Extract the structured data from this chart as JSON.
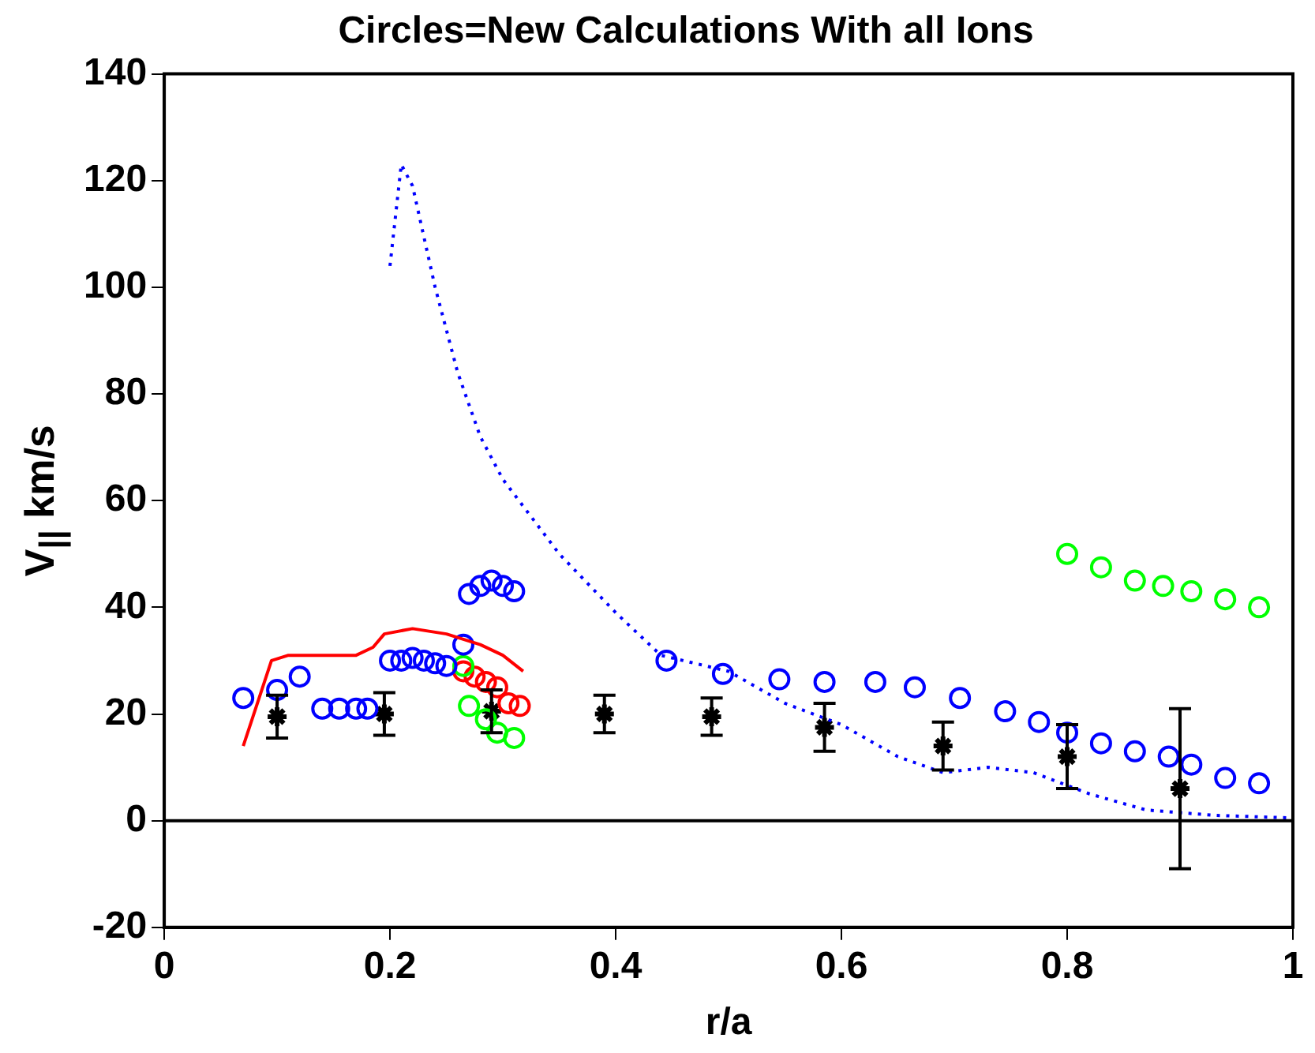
{
  "chart_data": {
    "type": "scatter",
    "title": "Circles=New Calculations With all Ions",
    "xlabel": "r/a",
    "ylabel": "V$_{||}$ km/s",
    "xlim": [
      0,
      1
    ],
    "xticks": [
      0,
      0.2,
      0.4,
      0.6,
      0.8,
      1
    ],
    "ylim": [
      -20,
      140
    ],
    "yticks": [
      -20,
      0,
      20,
      40,
      60,
      80,
      100,
      120,
      140
    ],
    "grid": false,
    "legend": false,
    "ref_lines": [
      {
        "axis": "y",
        "value": 0,
        "color": "#000000"
      }
    ],
    "series": [
      {
        "type": "line",
        "color": "#0000ff",
        "line_style": "dotted",
        "marker": "none",
        "x": [
          0.2,
          0.21,
          0.22,
          0.24,
          0.26,
          0.28,
          0.3,
          0.35,
          0.4,
          0.44,
          0.5,
          0.55,
          0.6,
          0.65,
          0.69,
          0.73,
          0.77,
          0.82,
          0.87,
          0.93,
          1.0
        ],
        "values": [
          104,
          123,
          119,
          100,
          84,
          72,
          64,
          50,
          39,
          31,
          28,
          22,
          18,
          12,
          9,
          10,
          9,
          5,
          2,
          1,
          0.5
        ]
      },
      {
        "type": "line",
        "color": "#ff0000",
        "line_style": "solid",
        "marker": "none",
        "x": [
          0.07,
          0.095,
          0.11,
          0.17,
          0.185,
          0.195,
          0.22,
          0.25,
          0.28,
          0.3,
          0.318
        ],
        "values": [
          14,
          30,
          31,
          31,
          32.5,
          35,
          36,
          35,
          33,
          31,
          28
        ]
      },
      {
        "color": "#0000ff",
        "marker": "circle",
        "x": [
          0.07,
          0.1,
          0.12,
          0.14,
          0.155,
          0.17,
          0.18,
          0.2,
          0.21,
          0.22,
          0.23,
          0.24,
          0.25,
          0.265,
          0.27,
          0.28,
          0.29,
          0.3,
          0.31,
          0.445,
          0.495,
          0.545,
          0.585,
          0.63,
          0.665,
          0.705,
          0.745,
          0.775,
          0.8,
          0.83,
          0.86,
          0.89,
          0.91,
          0.94,
          0.97
        ],
        "values": [
          23,
          24.5,
          27,
          21,
          21,
          21,
          21,
          30,
          30,
          30.5,
          30,
          29.5,
          29,
          33,
          42.5,
          44,
          45,
          44,
          43,
          30,
          27.5,
          26.5,
          26,
          26,
          25,
          23,
          20.5,
          18.5,
          16.5,
          14.5,
          13,
          12,
          10.5,
          8,
          7
        ]
      },
      {
        "color": "#00ff00",
        "marker": "circle",
        "x": [
          0.265,
          0.27,
          0.285,
          0.295,
          0.31,
          0.8,
          0.83,
          0.86,
          0.885,
          0.91,
          0.94,
          0.97
        ],
        "values": [
          29,
          21.5,
          19,
          16.5,
          15.5,
          50,
          47.5,
          45,
          44,
          43,
          41.5,
          40
        ]
      },
      {
        "color": "#ff0000",
        "marker": "circle",
        "x": [
          0.265,
          0.275,
          0.285,
          0.295,
          0.305,
          0.315
        ],
        "values": [
          28,
          27,
          26,
          25,
          22,
          21.5
        ]
      },
      {
        "color": "#000000",
        "marker": "cross",
        "x": [
          0.1,
          0.195,
          0.29,
          0.39,
          0.485,
          0.585,
          0.69,
          0.8,
          0.9
        ],
        "values": [
          19.5,
          20,
          20.5,
          20,
          19.5,
          17.5,
          14,
          12,
          6
        ],
        "errors": [
          4,
          4,
          4,
          3.5,
          3.5,
          4.5,
          4.5,
          6,
          15
        ]
      }
    ]
  }
}
